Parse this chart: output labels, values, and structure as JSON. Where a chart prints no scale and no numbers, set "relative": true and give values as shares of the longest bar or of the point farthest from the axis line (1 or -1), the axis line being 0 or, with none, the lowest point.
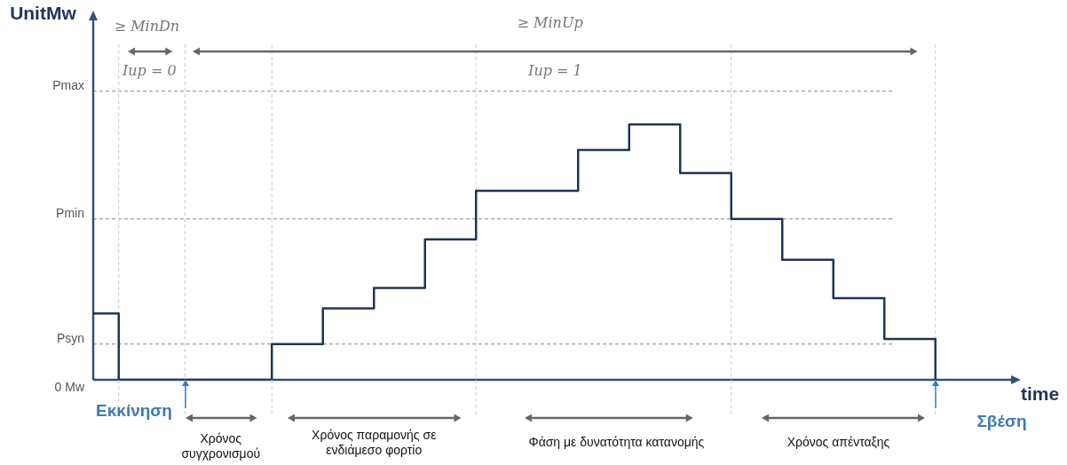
{
  "chart_data": {
    "type": "step",
    "relative": true,
    "xlabel": "time",
    "categories": [
      null,
      null,
      null,
      null,
      null,
      null,
      null,
      null,
      null,
      null,
      null,
      null,
      null,
      null,
      null,
      null,
      null,
      null,
      null,
      null,
      null,
      null,
      null,
      null,
      null,
      null,
      null,
      null,
      null,
      null,
      null,
      null,
      null,
      null,
      null,
      null,
      null
    ],
    "series": [
      {
        "color": "#1f3556",
        "values": [
          0.26,
          0,
          0,
          0,
          0,
          0,
          0,
          0.14,
          0.14,
          0.28,
          0.28,
          0.36,
          0.36,
          0.55,
          0.55,
          0.74,
          0.74,
          0.74,
          0.74,
          0.9,
          0.9,
          1,
          1,
          0.81,
          0.81,
          0.63,
          0.63,
          0.47,
          0.47,
          0.32,
          0.32,
          0.16,
          0.16,
          0,
          null,
          null,
          null
        ]
      }
    ],
    "ref_lines": [
      {
        "axis": "y",
        "value": 0,
        "label": "0 Mw",
        "line_style": "solid",
        "color": "#34507a"
      },
      {
        "axis": "y",
        "value": 0.14,
        "label": "Psyn",
        "line_style": "dashed",
        "color": "#888888"
      },
      {
        "axis": "y",
        "value": 0.63,
        "label": "Pmin",
        "line_style": "dashed",
        "color": "#888888"
      },
      {
        "axis": "y",
        "value": 1.13,
        "label": "Pmax",
        "line_style": "dashed",
        "color": "#888888"
      }
    ],
    "annotations": [
      "UnitMw",
      "≥ MinDn",
      "Iup = 0",
      "≥ MinUp",
      "Iup = 1",
      "Εκκίνηση",
      "Σβέση",
      "Χρόνος συγχρονισμού",
      "Χρόνος παραμονής σε ενδιάμεσο φορτίο",
      "Φάση με δυνατότητα κατανομής",
      "Χρόνος απένταξης"
    ],
    "grid": "x",
    "legend": false,
    "marker": "none",
    "line_style": "solid"
  }
}
